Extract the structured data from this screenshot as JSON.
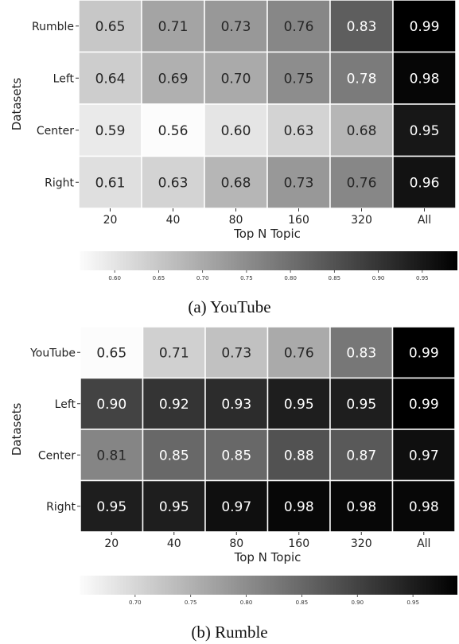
{
  "captions": {
    "a": "(a) YouTube",
    "b": "(b) Rumble"
  },
  "chart_data": [
    {
      "type": "heatmap",
      "title": "",
      "xlabel": "Top N Topic",
      "ylabel": "Datasets",
      "x_categories": [
        "20",
        "40",
        "80",
        "160",
        "320",
        "All"
      ],
      "y_categories": [
        "Rumble",
        "Left",
        "Center",
        "Right"
      ],
      "values": [
        [
          0.65,
          0.71,
          0.73,
          0.76,
          0.83,
          0.99
        ],
        [
          0.64,
          0.69,
          0.7,
          0.75,
          0.78,
          0.98
        ],
        [
          0.59,
          0.56,
          0.6,
          0.63,
          0.68,
          0.95
        ],
        [
          0.61,
          0.63,
          0.68,
          0.73,
          0.76,
          0.96
        ]
      ],
      "colormap": "Greys",
      "color_range": [
        0.56,
        0.99
      ],
      "colorbar": {
        "orientation": "horizontal",
        "ticks": [
          "0.60",
          "0.65",
          "0.70",
          "0.75",
          "0.80",
          "0.85",
          "0.90",
          "0.95"
        ]
      }
    },
    {
      "type": "heatmap",
      "title": "",
      "xlabel": "Top N Topic",
      "ylabel": "Datasets",
      "x_categories": [
        "20",
        "40",
        "80",
        "160",
        "320",
        "All"
      ],
      "y_categories": [
        "YouTube",
        "Left",
        "Center",
        "Right"
      ],
      "values": [
        [
          0.65,
          0.71,
          0.73,
          0.76,
          0.83,
          0.99
        ],
        [
          0.9,
          0.92,
          0.93,
          0.95,
          0.95,
          0.99
        ],
        [
          0.81,
          0.85,
          0.85,
          0.88,
          0.87,
          0.97
        ],
        [
          0.95,
          0.95,
          0.97,
          0.98,
          0.98,
          0.98
        ]
      ],
      "colormap": "Greys",
      "color_range": [
        0.65,
        0.99
      ],
      "colorbar": {
        "orientation": "horizontal",
        "ticks": [
          "0.70",
          "0.75",
          "0.80",
          "0.85",
          "0.90",
          "0.95"
        ]
      }
    }
  ]
}
